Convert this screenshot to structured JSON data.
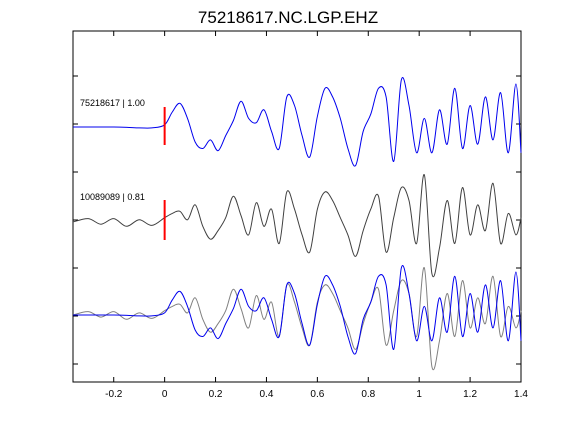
{
  "chart_data": {
    "type": "line",
    "title": "75218617.NC.LGP.EHZ",
    "xlabel": "",
    "ylabel": "",
    "xlim": [
      -0.36,
      1.4
    ],
    "xticks": [
      -0.2,
      0,
      0.2,
      0.4,
      0.6,
      0.8,
      1,
      1.2,
      1.4
    ],
    "xtick_labels": [
      "-0.2",
      "0",
      "0.2",
      "0.4",
      "0.6",
      "0.8",
      "1",
      "1.2",
      "1.4"
    ],
    "grid": false,
    "pick_time": 0,
    "colors": {
      "template": "#0000ee",
      "detection": "#404040",
      "overlay_detection": "#808080",
      "pick": "#ff0000"
    },
    "traces": [
      {
        "label": "75218617 | 1.00",
        "id": "75218617",
        "correlation": 1.0,
        "color": "#0000ee",
        "x": [
          -0.36,
          -0.2,
          -0.1,
          -0.05,
          0,
          0.03,
          0.06,
          0.09,
          0.12,
          0.15,
          0.18,
          0.21,
          0.24,
          0.27,
          0.3,
          0.33,
          0.36,
          0.39,
          0.42,
          0.45,
          0.48,
          0.51,
          0.54,
          0.57,
          0.6,
          0.63,
          0.66,
          0.69,
          0.72,
          0.75,
          0.78,
          0.81,
          0.84,
          0.87,
          0.9,
          0.93,
          0.96,
          0.99,
          1.02,
          1.05,
          1.08,
          1.11,
          1.14,
          1.17,
          1.2,
          1.23,
          1.26,
          1.29,
          1.32,
          1.35,
          1.38,
          1.4
        ],
        "y": [
          0,
          0,
          -0.02,
          -0.02,
          0.05,
          0.35,
          0.55,
          0.2,
          -0.35,
          -0.5,
          -0.3,
          -0.55,
          -0.2,
          0.15,
          0.6,
          0.2,
          0.1,
          0.4,
          -0.1,
          -0.5,
          0.7,
          0.5,
          -0.2,
          -0.7,
          0.25,
          0.9,
          0.7,
          0.2,
          -0.5,
          -0.9,
          -0.1,
          0.3,
          0.9,
          0.7,
          -0.8,
          1.1,
          0.5,
          -0.6,
          0.2,
          -0.6,
          0.4,
          -0.4,
          0.9,
          -0.5,
          0.5,
          -0.4,
          0.7,
          -0.3,
          0.8,
          -0.6,
          1.0,
          -0.6
        ]
      },
      {
        "label": "10089089 | 0.81",
        "id": "10089089",
        "correlation": 0.81,
        "color": "#404040",
        "x": [
          -0.36,
          -0.3,
          -0.25,
          -0.2,
          -0.15,
          -0.1,
          -0.05,
          0,
          0.03,
          0.06,
          0.09,
          0.12,
          0.15,
          0.18,
          0.21,
          0.24,
          0.27,
          0.3,
          0.33,
          0.36,
          0.39,
          0.42,
          0.45,
          0.48,
          0.51,
          0.54,
          0.57,
          0.6,
          0.63,
          0.66,
          0.69,
          0.72,
          0.75,
          0.78,
          0.81,
          0.84,
          0.87,
          0.9,
          0.93,
          0.96,
          0.99,
          1.02,
          1.05,
          1.08,
          1.11,
          1.14,
          1.17,
          1.2,
          1.23,
          1.26,
          1.29,
          1.32,
          1.35,
          1.38,
          1.4
        ],
        "y": [
          0,
          0.08,
          -0.05,
          0.08,
          -0.1,
          0.05,
          -0.08,
          0.1,
          0.2,
          0.25,
          0.05,
          0.4,
          -0.1,
          -0.4,
          -0.2,
          0.1,
          0.6,
          0.15,
          -0.3,
          0.45,
          -0.1,
          0.3,
          -0.5,
          0.7,
          0.3,
          -0.3,
          -0.7,
          0.3,
          0.7,
          0.5,
          0.1,
          -0.3,
          -0.8,
          -0.2,
          0.3,
          0.6,
          -0.7,
          0.1,
          0.8,
          0.5,
          -0.5,
          1.1,
          -1.2,
          -0.6,
          0.5,
          -0.5,
          0.8,
          -0.3,
          0.4,
          -0.2,
          0.9,
          -0.5,
          0.2,
          -0.3,
          0.1
        ]
      }
    ],
    "overlay": {
      "series": [
        "75218617",
        "10089089"
      ],
      "colors": [
        "#0000ee",
        "#808080"
      ]
    }
  }
}
